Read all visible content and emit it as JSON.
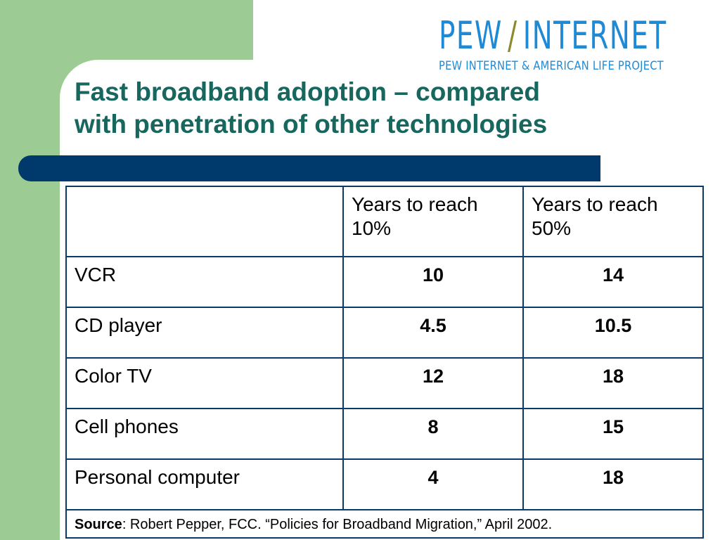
{
  "logo": {
    "left_word": "PEW",
    "slash": "/",
    "right_word": "INTERNET",
    "subtitle": "PEW INTERNET & AMERICAN LIFE PROJECT"
  },
  "title": {
    "line1": "Fast broadband adoption – compared",
    "line2": "with penetration of other technologies"
  },
  "table": {
    "headers": [
      "",
      "Years to reach 10%",
      "Years to reach 50%"
    ],
    "rows": [
      {
        "technology": "VCR",
        "years_10": "10",
        "years_50": "14"
      },
      {
        "technology": "CD player",
        "years_10": "4.5",
        "years_50": "10.5"
      },
      {
        "technology": "Color TV",
        "years_10": "12",
        "years_50": "18"
      },
      {
        "technology": "Cell phones",
        "years_10": "8",
        "years_50": "15"
      },
      {
        "technology": "Personal computer",
        "years_10": "4",
        "years_50": "18"
      }
    ]
  },
  "source": {
    "label": "Source",
    "text": ": Robert Pepper, FCC. “Policies for Broadband Migration,” April 2002."
  },
  "colors": {
    "green_band": "#9ccc94",
    "title": "#17675f",
    "navy_bar": "#003a6c",
    "logo_blue": "#1e8ad6",
    "logo_slash": "#8c8a2a",
    "table_border": "#0b3968"
  }
}
